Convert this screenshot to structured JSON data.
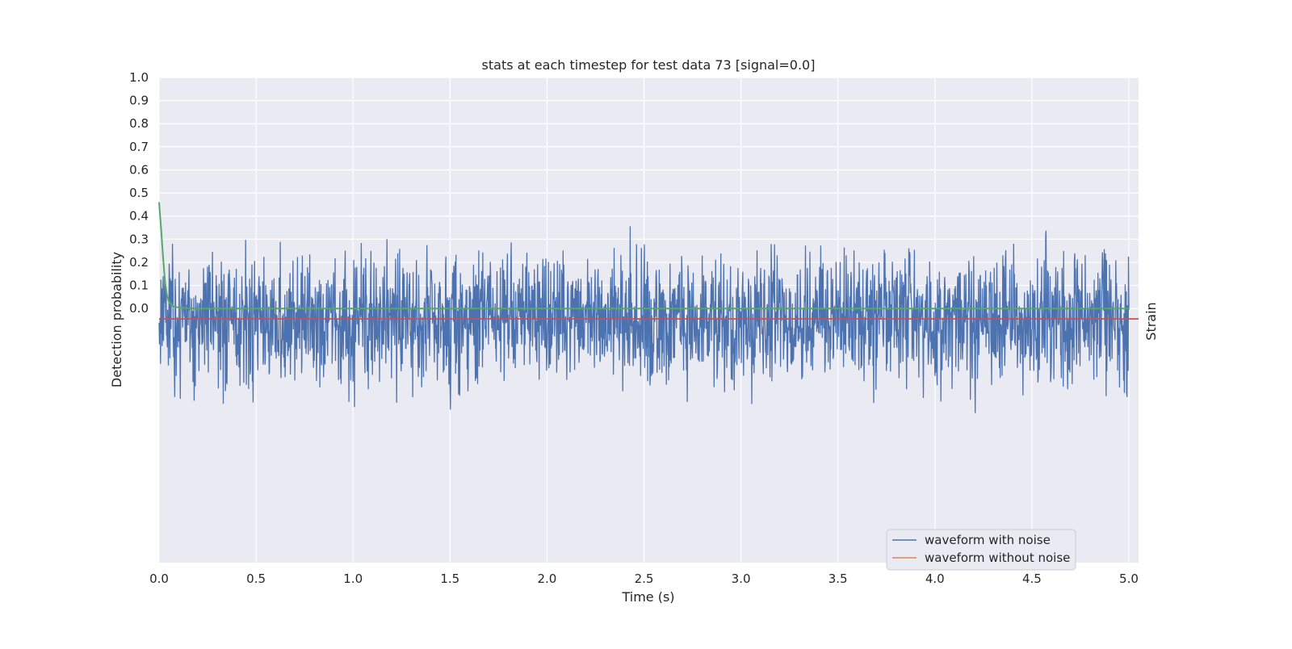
{
  "chart_data": {
    "type": "line",
    "title": "stats at each timestep for test data 73 [signal=0.0]",
    "xlabel": "Time (s)",
    "ylabel": "Detection probability",
    "ylabel_right": "Strain",
    "xlim": [
      0.0,
      5.05
    ],
    "ylim": [
      -1.1,
      1.0
    ],
    "x_ticks": [
      "0.0",
      "0.5",
      "1.0",
      "1.5",
      "2.0",
      "2.5",
      "3.0",
      "3.5",
      "4.0",
      "4.5",
      "5.0"
    ],
    "y_ticks": [
      "0.0",
      "0.1",
      "0.2",
      "0.3",
      "0.4",
      "0.5",
      "0.6",
      "0.7",
      "0.8",
      "0.9",
      "1.0"
    ],
    "grid": true,
    "legend_position": "lower-right",
    "series": [
      {
        "name": "waveform with noise",
        "color": "#4c72b0",
        "axis": "right",
        "x_range": [
          0.0,
          5.0
        ],
        "envelope_max": 0.91,
        "envelope_min": -0.98
      },
      {
        "name": "waveform without noise",
        "color": "#dd8452",
        "axis": "right",
        "value": 0.0
      },
      {
        "color": "#55a868",
        "axis": "left",
        "x": [
          0.0,
          0.01,
          0.02,
          0.03,
          0.04,
          0.05,
          0.07,
          0.1,
          0.15,
          0.2,
          5.0
        ],
        "y": [
          0.46,
          0.35,
          0.23,
          0.12,
          0.06,
          0.03,
          0.01,
          0.004,
          0.001,
          0.0,
          0.0
        ]
      },
      {
        "color": "#c44e52",
        "axis": "left",
        "value": -0.045
      }
    ]
  }
}
